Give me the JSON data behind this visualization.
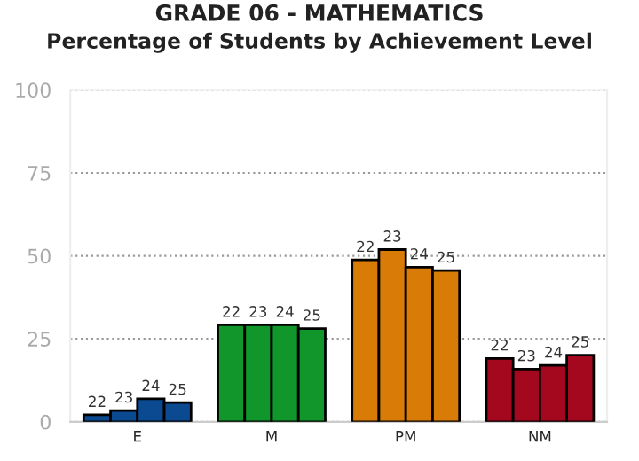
{
  "chart_data": {
    "type": "bar",
    "title": "GRADE 06 - MATHEMATICS",
    "subtitle": "Percentage of Students by Achievement Level",
    "categories": [
      "E",
      "M",
      "PM",
      "NM"
    ],
    "series": [
      {
        "name": "22",
        "colors": [
          "#0b4a91",
          "#10962a",
          "#d87c07",
          "#a3081f"
        ],
        "values": [
          2.1,
          29.2,
          48.8,
          19.1
        ]
      },
      {
        "name": "23",
        "colors": [
          "#0b4a91",
          "#10962a",
          "#d87c07",
          "#a3081f"
        ],
        "values": [
          3.4,
          29.2,
          51.9,
          15.9
        ]
      },
      {
        "name": "24",
        "colors": [
          "#0b4a91",
          "#10962a",
          "#d87c07",
          "#a3081f"
        ],
        "values": [
          6.9,
          29.2,
          46.6,
          17.0
        ]
      },
      {
        "name": "25",
        "colors": [
          "#0b4a91",
          "#10962a",
          "#d87c07",
          "#a3081f"
        ],
        "values": [
          5.8,
          28.1,
          45.6,
          20.1
        ]
      }
    ],
    "ylim": [
      0,
      100
    ],
    "yticks": [
      0,
      25,
      50,
      75,
      100
    ],
    "grid": "y",
    "legend": false
  }
}
